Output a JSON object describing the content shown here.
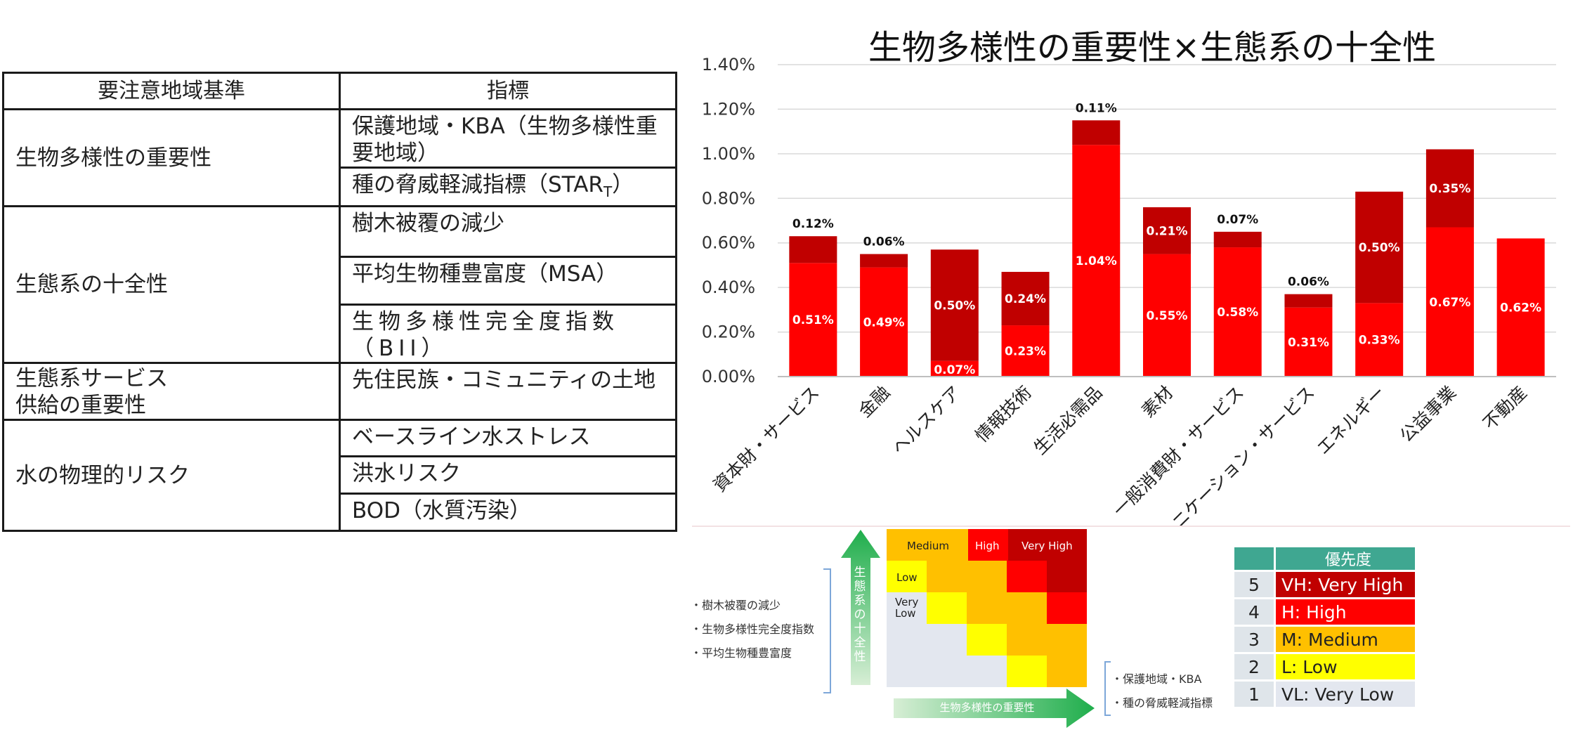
{
  "table": {
    "headers": [
      "要注意地域基準",
      "指標"
    ],
    "groups": [
      {
        "criterion": "生物多様性の重要性",
        "indicators": [
          "保護地域・KBA（生物多様性重要地域）",
          "種の脅威軽減指標（STAR"
        ],
        "sub": "T",
        "close": "）"
      },
      {
        "criterion": "生態系の十全性",
        "indicators": [
          "樹木被覆の減少",
          "平均生物種豊富度（MSA）",
          "生物多様性完全度指数（BII）"
        ]
      },
      {
        "criterion_line1": "生態系サービス",
        "criterion_line2": "供給の重要性",
        "indicators": [
          "先住民族・コミュニティの土地"
        ]
      },
      {
        "criterion": "水の物理的リスク",
        "indicators": [
          "ベースライン水ストレス",
          "洪水リスク",
          "BOD（水質汚染）"
        ]
      }
    ]
  },
  "chart_data": {
    "type": "bar",
    "stacked": true,
    "title": "生物多様性の重要性×生態系の十全性",
    "ylim": [
      0,
      1.4
    ],
    "yticks": [
      "0.00%",
      "0.20%",
      "0.40%",
      "0.60%",
      "0.80%",
      "1.00%",
      "1.20%",
      "1.40%"
    ],
    "categories": [
      "資本財・サービス",
      "金融",
      "ヘルスケア",
      "情報技術",
      "生活必需品",
      "素材",
      "一般消費財・サービス",
      "コミュニケーション・サービス",
      "エネルギー",
      "公益事業",
      "不動産"
    ],
    "series": [
      {
        "name": "bottom",
        "color": "#ff0000",
        "values": [
          0.51,
          0.49,
          0.07,
          0.23,
          1.04,
          0.55,
          0.58,
          0.31,
          0.33,
          0.67,
          0.62
        ],
        "labels": [
          "0.51%",
          "0.49%",
          "0.07%",
          "0.23%",
          "1.04%",
          "0.55%",
          "0.58%",
          "0.31%",
          "0.33%",
          "0.67%",
          "0.62%"
        ]
      },
      {
        "name": "top",
        "color": "#c00000",
        "values": [
          0.12,
          0.06,
          0.5,
          0.24,
          0.11,
          0.21,
          0.07,
          0.06,
          0.5,
          0.35,
          0
        ],
        "labels": [
          "0.12%",
          "0.06%",
          "0.50%",
          "0.24%",
          "0.11%",
          "0.21%",
          "0.07%",
          "0.06%",
          "0.50%",
          "0.35%",
          ""
        ],
        "label_position": [
          "above",
          "above",
          "inside",
          "inside",
          "above",
          "inside",
          "above",
          "above",
          "inside",
          "inside",
          "none"
        ]
      }
    ]
  },
  "matrix": {
    "labels": {
      "medium": "Medium",
      "high": "High",
      "very_high": "Very High",
      "low": "Low",
      "very_low_1": "Very",
      "very_low_2": "Low"
    },
    "y_axis_label": "生態系の十全性",
    "x_axis_label": "生物多様性の重要性",
    "y_items": [
      "・樹木被覆の減少",
      "・生物多様性完全度指数",
      "・平均生物種豊富度"
    ],
    "x_items": [
      "・保護地域・KBA",
      "・種の脅威軽減指標"
    ]
  },
  "priority": {
    "header": "優先度",
    "rows": [
      {
        "num": "5",
        "label": "VH: Very High",
        "color": "#c00000",
        "text_color": "#ffffff"
      },
      {
        "num": "4",
        "label": "H: High",
        "color": "#ff0000",
        "text_color": "#ffffff"
      },
      {
        "num": "3",
        "label": "M: Medium",
        "color": "#ffc000",
        "text_color": "#222222"
      },
      {
        "num": "2",
        "label": "L: Low",
        "color": "#ffff00",
        "text_color": "#222222"
      },
      {
        "num": "1",
        "label": "VL: Very Low",
        "color": "#e3e7ef",
        "text_color": "#222222"
      }
    ]
  }
}
